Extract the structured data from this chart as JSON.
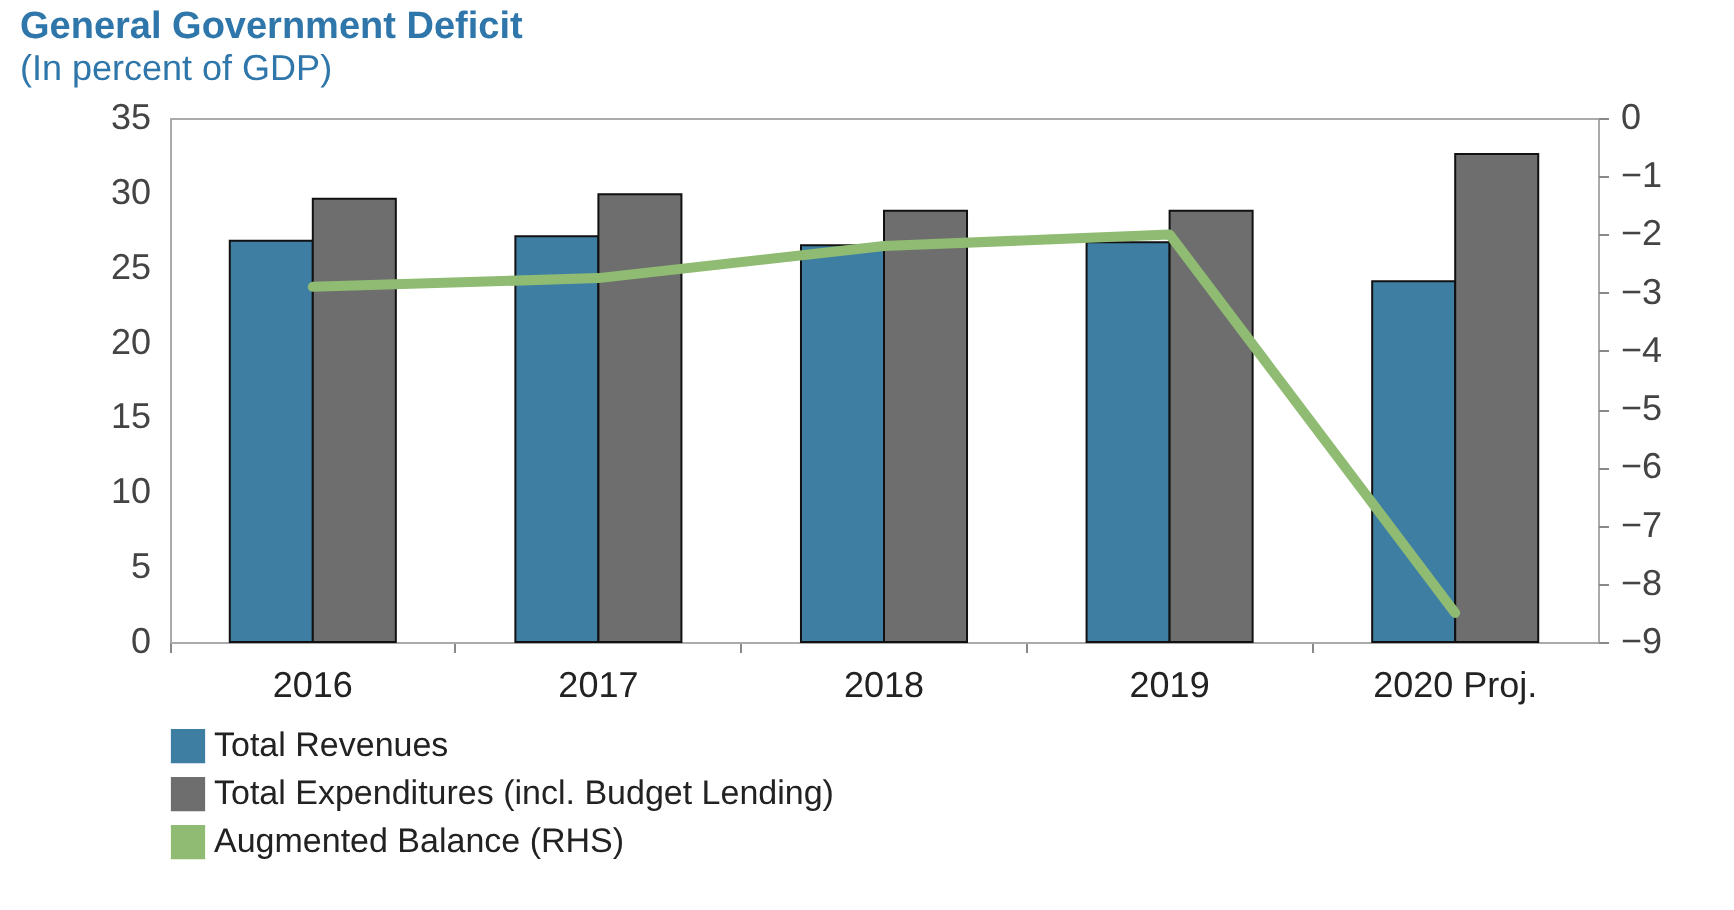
{
  "chart_data": {
    "type": "bar",
    "title": "General Government Deficit",
    "subtitle": "(In percent of GDP)",
    "categories": [
      "2016",
      "2017",
      "2018",
      "2019",
      "2020 Proj."
    ],
    "series": [
      {
        "name": "Total Revenues",
        "color": "#3f7ea3",
        "values": [
          26.8,
          27.1,
          26.5,
          26.7,
          24.1
        ]
      },
      {
        "name": "Total Expenditures (incl. Budget Lending)",
        "color": "#6e6e6e",
        "values": [
          29.6,
          29.9,
          28.8,
          28.8,
          32.6
        ]
      },
      {
        "name": "Augmented Balance (RHS)",
        "type": "line",
        "axis": "y2",
        "color": "#8fbc72",
        "values": [
          -2.9,
          -2.75,
          -2.2,
          -2.0,
          -8.5
        ]
      }
    ],
    "ylim": [
      0,
      35
    ],
    "yticks": [
      0,
      5,
      10,
      15,
      20,
      25,
      30,
      35
    ],
    "y2lim": [
      -9,
      0
    ],
    "y2ticks": [
      -9,
      -8,
      -7,
      -6,
      -5,
      -4,
      -3,
      -2,
      -1,
      0
    ],
    "grid": false,
    "legend": "bottom left"
  }
}
